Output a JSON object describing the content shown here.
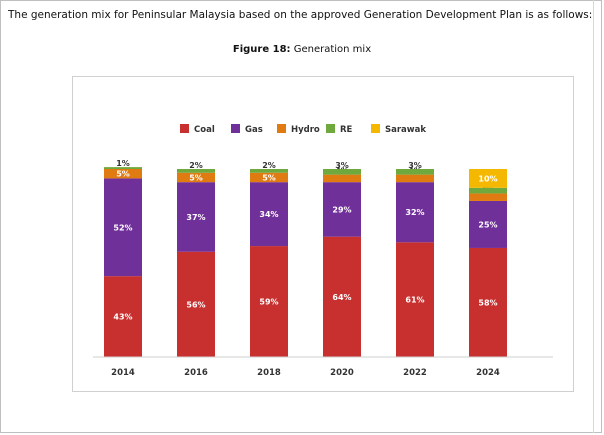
{
  "page": {
    "intro_text": "The generation mix for Peninsular Malaysia based on the approved Generation Development Plan is as follows:",
    "figure_number": "Figure 18:",
    "figure_caption": "Generation mix"
  },
  "colors": {
    "Coal": "#c8302f",
    "Gas": "#70309a",
    "Hydro": "#e07b12",
    "RE": "#6fa83c",
    "Sarawak": "#f5b800"
  },
  "chart_data": {
    "type": "bar",
    "stacked": true,
    "title": "Generation mix",
    "xlabel": "",
    "ylabel": "",
    "ylim": [
      0,
      100
    ],
    "grid": false,
    "legend": "top-center",
    "categories": [
      "2014",
      "2016",
      "2018",
      "2020",
      "2022",
      "2024"
    ],
    "series": [
      {
        "name": "Coal",
        "values": [
          43,
          56,
          59,
          64,
          61,
          58
        ]
      },
      {
        "name": "Gas",
        "values": [
          52,
          37,
          34,
          29,
          32,
          25
        ]
      },
      {
        "name": "Hydro",
        "values": [
          5,
          5,
          5,
          4,
          4,
          4
        ]
      },
      {
        "name": "RE",
        "values": [
          1,
          2,
          2,
          3,
          3,
          3
        ]
      },
      {
        "name": "Sarawak",
        "values": [
          0,
          0,
          0,
          0,
          0,
          10
        ]
      }
    ]
  }
}
